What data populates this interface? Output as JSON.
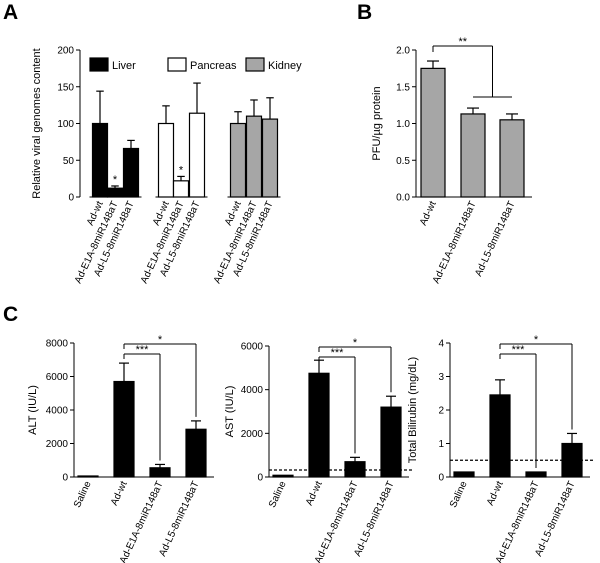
{
  "panels": [
    {
      "letter": "A"
    },
    {
      "letter": "B"
    },
    {
      "letter": "C"
    }
  ],
  "chart_data": [
    {
      "panel": "A",
      "type": "bar",
      "ylabel": "Relative viral genomes content",
      "ylim": [
        0,
        200
      ],
      "yticks": [
        0,
        50,
        100,
        150,
        200
      ],
      "legend_position": "top",
      "legend": [
        {
          "name": "Liver",
          "fill": "#000000"
        },
        {
          "name": "Pancreas",
          "fill": "#ffffff"
        },
        {
          "name": "Kidney",
          "fill": "#a6a6a6"
        }
      ],
      "bars": [
        {
          "group": "Liver",
          "label": "Ad-wt",
          "value": 100,
          "error": 44,
          "fill": "#000000",
          "sig": ""
        },
        {
          "group": "Liver",
          "label": "Ad-E1A-8miR148aT",
          "value": 12,
          "error": 3,
          "fill": "#000000",
          "sig": "*"
        },
        {
          "group": "Liver",
          "label": "Ad-L5-8miR148aT",
          "value": 66,
          "error": 11,
          "fill": "#000000",
          "sig": ""
        },
        {
          "group": "Pancreas",
          "label": "Ad-wt",
          "value": 100,
          "error": 24,
          "fill": "#ffffff",
          "sig": ""
        },
        {
          "group": "Pancreas",
          "label": "Ad-E1A-8miR148aT",
          "value": 22,
          "error": 6,
          "fill": "#ffffff",
          "sig": "*"
        },
        {
          "group": "Pancreas",
          "label": "Ad-L5-8miR148aT",
          "value": 114,
          "error": 41,
          "fill": "#ffffff",
          "sig": ""
        },
        {
          "group": "Kidney",
          "label": "Ad-wt",
          "value": 100,
          "error": 16,
          "fill": "#a6a6a6",
          "sig": ""
        },
        {
          "group": "Kidney",
          "label": "Ad-E1A-8miR148aT",
          "value": 110,
          "error": 22,
          "fill": "#a6a6a6",
          "sig": ""
        },
        {
          "group": "Kidney",
          "label": "Ad-L5-8miR148aT",
          "value": 106,
          "error": 29,
          "fill": "#a6a6a6",
          "sig": ""
        }
      ]
    },
    {
      "panel": "B",
      "type": "bar",
      "ylabel": "PFU/µg protein",
      "ylim": [
        0,
        2.0
      ],
      "yticks": [
        "0.0",
        "0.5",
        "1.0",
        "1.5",
        "2.0"
      ],
      "bars": [
        {
          "label": "Ad-wt",
          "value": 1.75,
          "error": 0.1,
          "fill": "#a6a6a6"
        },
        {
          "label": "Ad-E1A-8miR148aT",
          "value": 1.13,
          "error": 0.08,
          "fill": "#a6a6a6"
        },
        {
          "label": "Ad-L5-8miR148aT",
          "value": 1.05,
          "error": 0.08,
          "fill": "#a6a6a6"
        }
      ],
      "significance": [
        {
          "from": 0,
          "to": [
            1,
            2
          ],
          "label": "**"
        }
      ]
    },
    {
      "panel": "C",
      "type": "bar",
      "ylabel": "ALT (IU/L)",
      "ylim": [
        0,
        8000
      ],
      "yticks": [
        0,
        2000,
        4000,
        6000,
        8000
      ],
      "bars": [
        {
          "label": "Saline",
          "value": 60,
          "error": 0
        },
        {
          "label": "Ad-wt",
          "value": 5700,
          "error": 1100
        },
        {
          "label": "Ad-E1A-8miR148aT",
          "value": 550,
          "error": 200
        },
        {
          "label": "Ad-L5-8miR148aT",
          "value": 2850,
          "error": 500
        }
      ],
      "dashed_line": null,
      "significance": [
        {
          "from": 1,
          "to": 2,
          "label": "***"
        },
        {
          "from": 1,
          "to": 3,
          "label": "*"
        }
      ]
    },
    {
      "panel": "C",
      "type": "bar",
      "ylabel": "AST (IU/L)",
      "ylim": [
        0,
        6000
      ],
      "yticks": [
        0,
        2000,
        4000,
        6000
      ],
      "bars": [
        {
          "label": "Saline",
          "value": 80,
          "error": 0
        },
        {
          "label": "Ad-wt",
          "value": 4750,
          "error": 600
        },
        {
          "label": "Ad-E1A-8miR148aT",
          "value": 700,
          "error": 200
        },
        {
          "label": "Ad-L5-8miR148aT",
          "value": 3200,
          "error": 500
        }
      ],
      "dashed_line": 320,
      "significance": [
        {
          "from": 1,
          "to": 2,
          "label": "***"
        },
        {
          "from": 1,
          "to": 3,
          "label": "*"
        }
      ]
    },
    {
      "panel": "C",
      "type": "bar",
      "ylabel": "Total Bilirubin (mg/dL)",
      "ylim": [
        0,
        4
      ],
      "yticks": [
        0,
        1,
        2,
        3,
        4
      ],
      "bars": [
        {
          "label": "Saline",
          "value": 0.15,
          "error": 0
        },
        {
          "label": "Ad-wt",
          "value": 2.45,
          "error": 0.45
        },
        {
          "label": "Ad-E1A-8miR148aT",
          "value": 0.15,
          "error": 0
        },
        {
          "label": "Ad-L5-8miR148aT",
          "value": 1.0,
          "error": 0.3
        }
      ],
      "dashed_line": 0.5,
      "significance": [
        {
          "from": 1,
          "to": 2,
          "label": "***"
        },
        {
          "from": 1,
          "to": 3,
          "label": "*"
        }
      ]
    }
  ]
}
